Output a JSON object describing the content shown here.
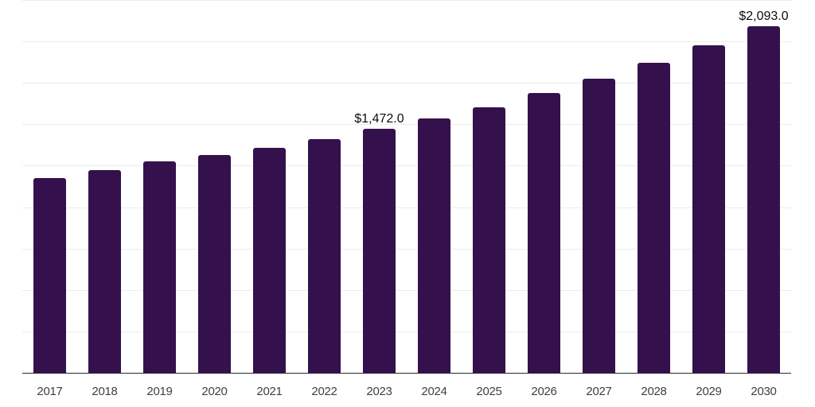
{
  "chart_data": {
    "type": "bar",
    "title": "",
    "xlabel": "",
    "ylabel": "",
    "categories": [
      "2017",
      "2018",
      "2019",
      "2020",
      "2021",
      "2022",
      "2023",
      "2024",
      "2025",
      "2026",
      "2027",
      "2028",
      "2029",
      "2030"
    ],
    "values": [
      1174,
      1224,
      1274,
      1313,
      1356,
      1409,
      1472.0,
      1537,
      1604,
      1687,
      1775,
      1871,
      1976,
      2093.0
    ],
    "point_labels": [
      "",
      "",
      "",
      "",
      "",
      "",
      "$1,472.0",
      "",
      "",
      "",
      "",
      "",
      "",
      "$2,093.0"
    ],
    "ylim": [
      0,
      2250
    ],
    "grid_step": 250,
    "grid_visible": "horizontal-only",
    "y_axis_labels_visible": false,
    "legend": null,
    "colors": {
      "bar": "#34114C",
      "grid": "#ececec",
      "axis": "#2b2b2b",
      "tick_label": "#404040",
      "data_label": "#0d0d0d",
      "background": "#ffffff"
    }
  }
}
